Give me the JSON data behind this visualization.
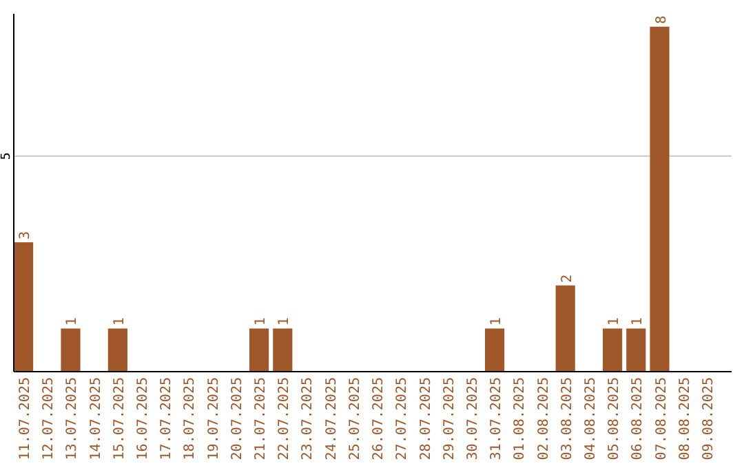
{
  "chart_data": {
    "type": "bar",
    "categories": [
      "11.07.2025",
      "12.07.2025",
      "13.07.2025",
      "14.07.2025",
      "15.07.2025",
      "16.07.2025",
      "17.07.2025",
      "18.07.2025",
      "19.07.2025",
      "20.07.2025",
      "21.07.2025",
      "22.07.2025",
      "23.07.2025",
      "24.07.2025",
      "25.07.2025",
      "26.07.2025",
      "27.07.2025",
      "28.07.2025",
      "29.07.2025",
      "30.07.2025",
      "31.07.2025",
      "01.08.2025",
      "02.08.2025",
      "03.08.2025",
      "04.08.2025",
      "05.08.2025",
      "06.08.2025",
      "07.08.2025",
      "08.08.2025",
      "09.08.2025"
    ],
    "values": [
      3,
      0,
      1,
      0,
      1,
      0,
      0,
      0,
      0,
      0,
      1,
      1,
      0,
      0,
      0,
      0,
      0,
      0,
      0,
      0,
      1,
      0,
      0,
      2,
      0,
      1,
      1,
      8,
      0,
      0
    ],
    "value_labels": [
      "3",
      null,
      "1",
      null,
      "1",
      null,
      null,
      null,
      null,
      null,
      "1",
      "1",
      null,
      null,
      null,
      null,
      null,
      null,
      null,
      null,
      "1",
      null,
      null,
      "2",
      null,
      "1",
      "1",
      "8",
      null,
      null
    ],
    "color": "#a0582a",
    "ylim": [
      0,
      8.3
    ],
    "yticks": [
      5
    ],
    "grid": "y"
  }
}
